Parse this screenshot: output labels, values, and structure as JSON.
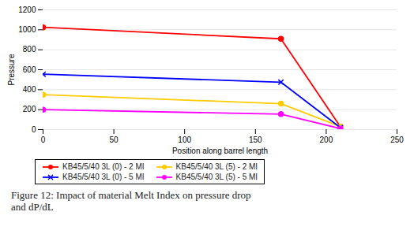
{
  "chart_data": {
    "type": "line",
    "x": [
      0,
      168,
      210
    ],
    "series": [
      {
        "name": "KB45/5/40 3L (0) - 2 MI",
        "color": "#ff0000",
        "marker": "circle",
        "values": [
          1025,
          910,
          30
        ]
      },
      {
        "name": "KB45/5/40 3L (5) - 2 MI",
        "color": "#ffcc00",
        "marker": "circle",
        "values": [
          350,
          260,
          30
        ]
      },
      {
        "name": "KB45/5/40 3L (0) - 5 MI",
        "color": "#0000ff",
        "marker": "x",
        "values": [
          555,
          475,
          20
        ]
      },
      {
        "name": "KB45/5/40 3L (5) - 5 MI",
        "color": "#ff00ff",
        "marker": "circle",
        "values": [
          200,
          155,
          10
        ]
      }
    ],
    "xlabel": "Position along barrel length",
    "ylabel": "Pressure",
    "xlim": [
      0,
      250
    ],
    "ylim": [
      0,
      1200
    ],
    "xticks": [
      0,
      50,
      100,
      150,
      200,
      250
    ],
    "yticks": [
      0,
      200,
      400,
      600,
      800,
      1000,
      1200
    ],
    "grid": true,
    "legend": "bottom",
    "caption": "Figure 12: Impact of material Melt Index on pressure drop\nand dP/dL"
  }
}
